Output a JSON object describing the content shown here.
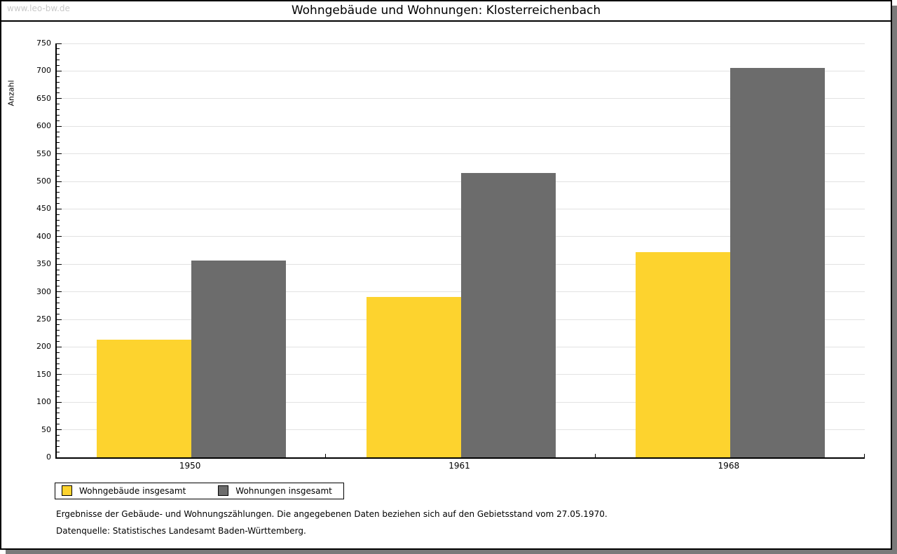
{
  "watermark": "www.leo-bw.de",
  "title": "Wohngebäude und Wohnungen: Klosterreichenbach",
  "chart_data": {
    "type": "bar",
    "title": "Wohngebäude und Wohnungen: Klosterreichenbach",
    "categories": [
      "1950",
      "1961",
      "1968"
    ],
    "series": [
      {
        "name": "Wohngebäude insgesamt",
        "color": "#fdd32e",
        "values": [
          213,
          290,
          372
        ]
      },
      {
        "name": "Wohnungen insgesamt",
        "color": "#6c6c6c",
        "values": [
          356,
          515,
          706
        ]
      }
    ],
    "xlabel": "",
    "ylabel": "Anzahl",
    "ylim": [
      0,
      750
    ],
    "ytick_step": 50,
    "yminor_step": 10,
    "grid": true,
    "legend_position": "bottom-left"
  },
  "footnotes": [
    "Ergebnisse der Gebäude- und Wohnungszählungen. Die angegebenen Daten beziehen sich auf den Gebietsstand vom 27.05.1970.",
    "Datenquelle: Statistisches Landesamt Baden-Württemberg."
  ],
  "colors": {
    "bar_yellow": "#fdd32e",
    "bar_gray": "#6c6c6c",
    "gridline": "#e2e2e2",
    "watermark": "#c9c9c9",
    "shadow": "#7a7a7a",
    "axis": "#000000"
  }
}
